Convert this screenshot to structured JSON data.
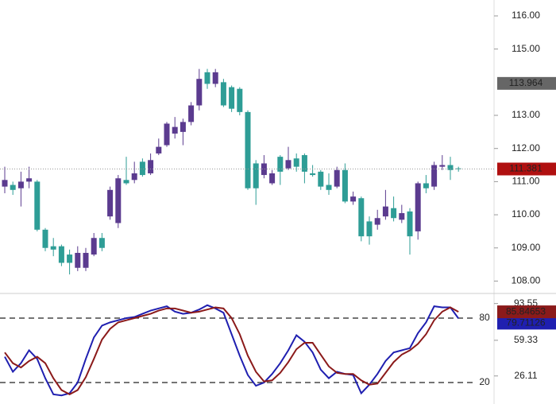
{
  "chart_data": [
    {
      "type": "candlestick",
      "up_color": "#5b3b8f",
      "down_color": "#2e9d96",
      "ylim": [
        107.65,
        116.48
      ],
      "yticks": [
        {
          "value": 116,
          "label": "116.00"
        },
        {
          "value": 115,
          "label": "115.00"
        },
        {
          "value": 113,
          "label": "113.00"
        },
        {
          "value": 112,
          "label": "112.00"
        },
        {
          "value": 111,
          "label": "111.00"
        },
        {
          "value": 110,
          "label": "110.00"
        },
        {
          "value": 109,
          "label": "109.00"
        },
        {
          "value": 108,
          "label": "108.00"
        }
      ],
      "price_marker": 113.964,
      "open": [
        110.85,
        110.9,
        110.8,
        111.0,
        111.0,
        109.55,
        109.05,
        109.05,
        108.8,
        108.4,
        108.4,
        108.8,
        109.3,
        109.95,
        109.75,
        111.05,
        111.05,
        111.6,
        111.25,
        111.85,
        112.1,
        112.45,
        112.5,
        112.8,
        113.3,
        114.3,
        113.95,
        114.0,
        113.85,
        113.8,
        113.1,
        111.55,
        111.2,
        110.95,
        111.75,
        111.4,
        111.7,
        111.8,
        111.25,
        111.3,
        110.9,
        110.85,
        111.35,
        110.4,
        110.5,
        109.8,
        109.7,
        109.95,
        110.2,
        109.85,
        110.1,
        109.5,
        110.95,
        110.85,
        111.45,
        111.5,
        111.4
      ],
      "high": [
        111.45,
        111.0,
        111.3,
        111.45,
        111.05,
        109.6,
        109.3,
        109.1,
        108.95,
        109.05,
        109.0,
        109.45,
        109.45,
        110.85,
        111.2,
        111.75,
        111.6,
        111.7,
        111.85,
        112.3,
        112.8,
        112.95,
        112.9,
        113.4,
        114.4,
        114.4,
        114.4,
        114.1,
        113.9,
        113.85,
        113.15,
        111.65,
        111.8,
        111.35,
        111.8,
        112.05,
        111.85,
        111.85,
        111.5,
        111.35,
        111.25,
        111.45,
        111.55,
        110.7,
        110.55,
        109.95,
        110.15,
        110.75,
        110.55,
        110.3,
        110.2,
        111.0,
        111.2,
        111.6,
        111.8,
        111.75,
        111.45
      ],
      "low": [
        110.65,
        110.6,
        110.25,
        110.8,
        109.5,
        108.9,
        108.75,
        108.45,
        108.2,
        108.3,
        108.3,
        108.75,
        108.9,
        109.85,
        109.6,
        110.9,
        110.95,
        111.15,
        111.2,
        111.8,
        112.05,
        112.3,
        112.1,
        112.7,
        113.15,
        113.8,
        113.85,
        113.25,
        113.1,
        113.0,
        110.75,
        110.3,
        111.1,
        110.9,
        110.9,
        111.35,
        111.3,
        110.95,
        111.15,
        110.75,
        110.6,
        110.8,
        110.35,
        110.3,
        109.2,
        109.1,
        109.55,
        109.85,
        109.8,
        109.75,
        108.8,
        109.25,
        110.65,
        110.75,
        111.35,
        111.05,
        111.3
      ],
      "close": [
        111.05,
        110.75,
        111.0,
        111.1,
        109.55,
        109.0,
        108.95,
        108.55,
        108.55,
        108.85,
        108.85,
        109.3,
        109.0,
        110.75,
        111.1,
        110.95,
        111.25,
        111.2,
        111.65,
        112.05,
        112.75,
        112.65,
        112.8,
        113.3,
        114.1,
        113.95,
        114.3,
        113.3,
        113.2,
        113.1,
        110.8,
        110.8,
        111.55,
        111.25,
        111.3,
        111.65,
        111.45,
        111.3,
        111.2,
        110.85,
        110.75,
        111.35,
        110.4,
        110.55,
        109.35,
        109.35,
        109.9,
        110.25,
        109.9,
        110.05,
        109.35,
        110.95,
        110.8,
        111.5,
        111.5,
        111.35,
        111.381
      ]
    },
    {
      "type": "line",
      "ylim": [
        0,
        102.2
      ],
      "yticks": [
        93.55,
        59.33,
        26.11
      ],
      "levels": [
        80,
        20
      ],
      "series": [
        {
          "color": "#1f1fb0",
          "values": [
            44,
            30,
            38,
            50,
            42,
            24,
            9,
            8,
            10,
            20,
            42,
            62,
            73,
            76,
            78,
            80,
            81,
            84,
            87,
            89,
            91,
            86,
            84,
            85,
            88,
            92,
            89,
            85,
            65,
            45,
            27,
            17,
            20,
            28,
            38,
            50,
            64,
            58,
            48,
            32,
            24,
            30,
            28,
            27,
            10,
            18,
            28,
            40,
            48,
            50,
            52,
            66,
            76,
            91,
            90,
            90,
            79.71126
          ]
        },
        {
          "color": "#8b1a1a",
          "values": [
            48,
            38,
            34,
            40,
            44,
            38,
            24,
            13,
            9,
            13,
            25,
            42,
            60,
            70,
            76,
            78,
            80,
            82,
            84,
            87,
            89,
            89,
            87,
            85,
            86,
            88,
            90,
            89,
            80,
            65,
            45,
            30,
            21,
            22,
            29,
            39,
            51,
            57,
            57,
            46,
            35,
            29,
            28,
            28,
            22,
            18,
            19,
            29,
            39,
            46,
            50,
            56,
            65,
            78,
            86,
            90,
            85.84653
          ]
        }
      ]
    }
  ]
}
